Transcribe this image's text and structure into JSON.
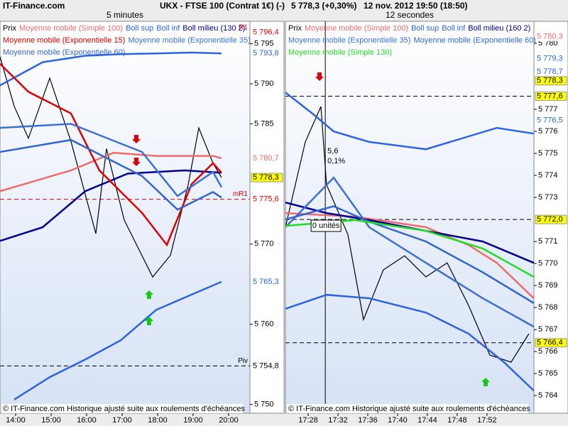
{
  "header": {
    "site": "IT-Finance.com",
    "instrument": "UKX - FTSE 100 (Contrat 1€) (-)",
    "quote": "5 778,3 (+0,30%)",
    "date": "12 nov. 2012 19:50 (18:50)"
  },
  "chart_data": [
    {
      "type": "line",
      "title": "5 minutes",
      "footer": "© IT-Finance.com  Historique ajusté suite aux roulements d'échéances",
      "xlim": [
        13.56,
        20.6
      ],
      "xticks": [
        {
          "value": 14,
          "label": "14:00"
        },
        {
          "value": 15,
          "label": "15:00"
        },
        {
          "value": 16,
          "label": "16:00"
        },
        {
          "value": 17,
          "label": "17:00"
        },
        {
          "value": 18,
          "label": "18:00"
        },
        {
          "value": 19,
          "label": "19:00"
        },
        {
          "value": 20,
          "label": "20:00"
        }
      ],
      "ylim": [
        5748.9,
        5797.8
      ],
      "yticks": [
        {
          "value": 5750,
          "label": "5 750"
        },
        {
          "value": 5760,
          "label": "5 760"
        },
        {
          "value": 5770,
          "label": "5 770"
        },
        {
          "value": 5785,
          "label": "5 785"
        },
        {
          "value": 5790,
          "label": "5 790"
        },
        {
          "value": 5795,
          "label": "5 795"
        }
      ],
      "series": [
        {
          "name": "Prix",
          "color": "#000000",
          "x": [
            13.56,
            13.96,
            14.36,
            14.96,
            15.56,
            16.26,
            16.56,
            17.06,
            17.86,
            18.36,
            18.86,
            19.16,
            19.56,
            19.8
          ],
          "values": [
            5793.4,
            5787.2,
            5783.2,
            5790.7,
            5782.8,
            5771.3,
            5781.9,
            5773.0,
            5765.9,
            5768.6,
            5777.4,
            5784.5,
            5780.1,
            5778.3
          ]
        },
        {
          "name": "Moyenne mobile (Simple 100)",
          "color": "#f06a6a",
          "x": [
            13.56,
            15.56,
            16.76,
            17.96,
            19.56,
            19.8
          ],
          "values": [
            5776.6,
            5779.2,
            5781.4,
            5781.0,
            5781.0,
            5780.7
          ]
        },
        {
          "name": "Boll sup",
          "color": "#2b63e0",
          "x": [
            13.56,
            14.76,
            15.96,
            16.96,
            17.96,
            18.96,
            19.8
          ],
          "values": [
            5789.8,
            5792.7,
            5793.5,
            5793.7,
            5793.8,
            5793.9,
            5793.8
          ]
        },
        {
          "name": "Boll inf",
          "color": "#2b63e0",
          "x": [
            13.96,
            14.96,
            15.96,
            16.96,
            17.96,
            18.96,
            19.8
          ],
          "values": [
            5750.6,
            5753.4,
            5755.6,
            5758.0,
            5761.8,
            5763.7,
            5765.3
          ]
        },
        {
          "name": "Boll milieu (130 2)",
          "color": "#000090",
          "x": [
            13.56,
            14.76,
            15.96,
            17.16,
            18.76,
            19.8
          ],
          "values": [
            5770.4,
            5772.1,
            5776.6,
            5778.8,
            5779.2,
            5778.9
          ]
        },
        {
          "name": "Moyenne mobile (Exponentielle 15)",
          "color": "#e00000",
          "x": [
            13.56,
            14.36,
            15.56,
            16.36,
            17.56,
            18.26,
            18.96,
            19.56,
            19.8
          ],
          "values": [
            5792.5,
            5789.0,
            5786.3,
            5779.2,
            5773.9,
            5769.9,
            5777.5,
            5780.1,
            5778.9
          ]
        },
        {
          "name": "Moyenne mobile (Exponentielle 35)",
          "color": "#3b6fd6",
          "x": [
            13.56,
            15.56,
            17.56,
            18.56,
            19.56,
            19.8
          ],
          "values": [
            5784.5,
            5785.0,
            5781.5,
            5776.0,
            5779.0,
            5777.1
          ]
        },
        {
          "name": "Moyenne mobile (Exponentielle 60)",
          "color": "#3366cc",
          "x": [
            13.56,
            15.56,
            17.56,
            18.56,
            19.56,
            19.8
          ],
          "values": [
            5781.5,
            5783.0,
            5778.5,
            5774.3,
            5776.5,
            5775.8
          ]
        }
      ],
      "levels": [
        {
          "value": 5796.4,
          "label": "5 796,4",
          "color": "#e00000",
          "tag": "R1"
        },
        {
          "value": 5793.8,
          "label": "5 793,8",
          "color": "#2b63e0"
        },
        {
          "value": 5780.7,
          "label": "5 780,7",
          "color": "#f06a6a"
        },
        {
          "value": 5778.3,
          "label": "5 778,3",
          "color": "#000000",
          "highlight": true
        },
        {
          "value": 5775.6,
          "label": "5 775,6",
          "color": "#e00000",
          "tag": "mR1",
          "dashed": true
        },
        {
          "value": 5765.3,
          "label": "5 765,3",
          "color": "#2b63e0"
        },
        {
          "value": 5754.8,
          "label": "5 754,8",
          "color": "#000000",
          "tag": "Piv",
          "dashed": true
        }
      ]
    },
    {
      "type": "line",
      "title": "12 secondes",
      "footer": "© IT-Finance.com  Historique ajusté suite aux roulements d'échéances",
      "xlim": [
        24.95,
        58.3
      ],
      "xticks": [
        {
          "value": 28,
          "label": "17:28"
        },
        {
          "value": 32,
          "label": "17:32"
        },
        {
          "value": 36,
          "label": "17:36"
        },
        {
          "value": 40,
          "label": "17:40"
        },
        {
          "value": 44,
          "label": "17:44"
        },
        {
          "value": 48,
          "label": "17:48"
        },
        {
          "value": 52,
          "label": "17:52"
        }
      ],
      "ylim": [
        5763.2,
        5781.0
      ],
      "yticks": [
        {
          "value": 5764,
          "label": "5 764"
        },
        {
          "value": 5765,
          "label": "5 765"
        },
        {
          "value": 5766,
          "label": "5 766"
        },
        {
          "value": 5767,
          "label": "5 767"
        },
        {
          "value": 5768,
          "label": "5 768"
        },
        {
          "value": 5769,
          "label": "5 769"
        },
        {
          "value": 5770,
          "label": "5 770"
        },
        {
          "value": 5771,
          "label": "5 771"
        },
        {
          "value": 5773,
          "label": "5 773"
        },
        {
          "value": 5774,
          "label": "5 774"
        },
        {
          "value": 5775,
          "label": "5 775"
        },
        {
          "value": 5776,
          "label": "5 776"
        },
        {
          "value": 5777,
          "label": "5 777"
        },
        {
          "value": 5780,
          "label": "5 780"
        }
      ],
      "crosshair_x": 30.3,
      "annotations": [
        "5,6",
        "0,1%",
        "0 unités"
      ],
      "series": [
        {
          "name": "Prix",
          "color": "#000000",
          "x": [
            24.95,
            27.62,
            29.71,
            30.47,
            33.33,
            35.43,
            38.09,
            40.95,
            43.81,
            46.66,
            49.52,
            52.38,
            55.24,
            57.62
          ],
          "values": [
            5771.65,
            5775.52,
            5777.13,
            5773.58,
            5771.32,
            5767.45,
            5769.71,
            5770.35,
            5769.39,
            5770.03,
            5768.1,
            5765.84,
            5765.52,
            5766.81
          ]
        },
        {
          "name": "Moyenne mobile (Simple 100)",
          "color": "#f06a6a",
          "x": [
            24.95,
            34.28,
            43.81,
            49.52,
            53.33,
            58.28
          ],
          "values": [
            5772.29,
            5772.13,
            5771.65,
            5770.84,
            5770.03,
            5768.42
          ]
        },
        {
          "name": "Boll sup",
          "color": "#2b63e0",
          "x": [
            24.95,
            28.57,
            31.43,
            36.19,
            43.81,
            53.33,
            58.28
          ],
          "values": [
            5777.77,
            5776.81,
            5776.0,
            5775.52,
            5775.19,
            5776.16,
            5775.9
          ]
        },
        {
          "name": "Boll inf",
          "color": "#2b63e0",
          "x": [
            24.95,
            30.47,
            36.19,
            43.81,
            49.52,
            54.28,
            58.28
          ],
          "values": [
            5767.94,
            5768.58,
            5768.42,
            5767.77,
            5766.81,
            5765.52,
            5764.23
          ]
        },
        {
          "name": "Boll milieu (160 2)",
          "color": "#000090",
          "x": [
            24.95,
            30.47,
            36.19,
            43.81,
            51.43,
            58.28
          ],
          "values": [
            5772.77,
            5772.29,
            5771.97,
            5771.48,
            5771.0,
            5770.03
          ]
        },
        {
          "name": "Moyenne mobile (Exponentielle 35)",
          "color": "#3b6fd6",
          "x": [
            24.95,
            31.43,
            36.19,
            43.81,
            51.43,
            58.28
          ],
          "values": [
            5771.65,
            5773.9,
            5771.65,
            5770.03,
            5768.42,
            5767.13
          ]
        },
        {
          "name": "Moyenne mobile (Exponentielle 60)",
          "color": "#3366cc",
          "x": [
            24.95,
            31.43,
            36.19,
            43.81,
            51.43,
            58.28
          ],
          "values": [
            5772.0,
            5772.6,
            5771.9,
            5771.0,
            5769.6,
            5768.2
          ]
        },
        {
          "name": "Moyenne mobile (Simple 130)",
          "color": "#22dd22",
          "x": [
            24.95,
            34.28,
            43.81,
            51.43,
            58.28
          ],
          "values": [
            5771.71,
            5771.97,
            5771.48,
            5770.68,
            5769.39
          ]
        }
      ],
      "levels": [
        {
          "value": 5780.3,
          "label": "5 780,3",
          "color": "#f06a6a"
        },
        {
          "value": 5779.3,
          "label": "5 779,3",
          "color": "#2b63e0"
        },
        {
          "value": 5778.7,
          "label": "5 778,7",
          "color": "#2b63e0"
        },
        {
          "value": 5778.3,
          "label": "5 778,3",
          "color": "#000000",
          "highlight": true
        },
        {
          "value": 5777.6,
          "label": "5 777,6",
          "color": "#000000",
          "highlight": true,
          "dashed": true
        },
        {
          "value": 5776.5,
          "label": "5 776,5",
          "color": "#2b63e0"
        },
        {
          "value": 5772.0,
          "label": "5 772,0",
          "color": "#000000",
          "highlight": true,
          "dashed": true
        },
        {
          "value": 5766.4,
          "label": "5 766,4",
          "color": "#000000",
          "highlight": true,
          "dashed": true
        }
      ]
    }
  ]
}
